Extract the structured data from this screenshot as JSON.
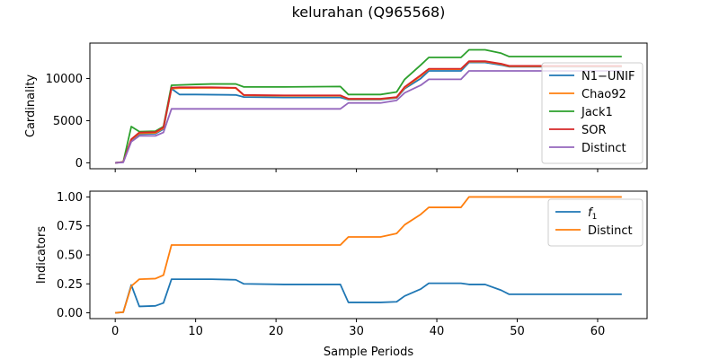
{
  "chart_data": {
    "title": "kelurahan (Q965568)",
    "xlabel": "Sample Periods",
    "panels": [
      {
        "type": "line",
        "ylabel": "Cardinality",
        "xlim": [
          -3.15,
          66.15
        ],
        "ylim": [
          -700,
          14200
        ],
        "xticks": [
          0,
          10,
          20,
          30,
          40,
          50,
          60
        ],
        "yticks": [
          0,
          5000,
          10000
        ],
        "legend_position": "right",
        "series": [
          {
            "name": "N1−UNIF",
            "color": "#1f77b4",
            "points": [
              [
                0,
                0
              ],
              [
                1,
                100
              ],
              [
                2,
                2700
              ],
              [
                3,
                3400
              ],
              [
                5,
                3450
              ],
              [
                6,
                4000
              ],
              [
                7,
                8800
              ],
              [
                8,
                8100
              ],
              [
                10,
                8100
              ],
              [
                15,
                8050
              ],
              [
                16,
                7800
              ],
              [
                21,
                7750
              ],
              [
                28,
                7750
              ],
              [
                29,
                7500
              ],
              [
                33,
                7500
              ],
              [
                35,
                7700
              ],
              [
                36,
                8800
              ],
              [
                38,
                10000
              ],
              [
                39,
                10900
              ],
              [
                43,
                10900
              ],
              [
                44,
                11900
              ],
              [
                46,
                11900
              ],
              [
                48,
                11600
              ],
              [
                49,
                11400
              ],
              [
                63,
                11400
              ]
            ]
          },
          {
            "name": "Chao92",
            "color": "#ff7f0e",
            "points": [
              [
                0,
                0
              ],
              [
                1,
                100
              ],
              [
                2,
                2750
              ],
              [
                3,
                3500
              ],
              [
                5,
                3550
              ],
              [
                6,
                4100
              ],
              [
                7,
                8800
              ],
              [
                8,
                8850
              ],
              [
                12,
                8900
              ],
              [
                15,
                8850
              ],
              [
                16,
                8000
              ],
              [
                21,
                7950
              ],
              [
                28,
                7950
              ],
              [
                29,
                7550
              ],
              [
                33,
                7550
              ],
              [
                35,
                7750
              ],
              [
                36,
                8900
              ],
              [
                38,
                10300
              ],
              [
                39,
                11100
              ],
              [
                43,
                11100
              ],
              [
                44,
                12000
              ],
              [
                46,
                12000
              ],
              [
                48,
                11700
              ],
              [
                49,
                11450
              ],
              [
                63,
                11450
              ]
            ]
          },
          {
            "name": "Jack1",
            "color": "#2ca02c",
            "points": [
              [
                0,
                0
              ],
              [
                1,
                100
              ],
              [
                2,
                4300
              ],
              [
                3,
                3700
              ],
              [
                5,
                3750
              ],
              [
                6,
                4300
              ],
              [
                7,
                9200
              ],
              [
                10,
                9300
              ],
              [
                12,
                9350
              ],
              [
                15,
                9350
              ],
              [
                16,
                9000
              ],
              [
                21,
                9000
              ],
              [
                28,
                9050
              ],
              [
                29,
                8100
              ],
              [
                33,
                8100
              ],
              [
                35,
                8400
              ],
              [
                36,
                9900
              ],
              [
                38,
                11600
              ],
              [
                39,
                12500
              ],
              [
                43,
                12500
              ],
              [
                44,
                13400
              ],
              [
                46,
                13400
              ],
              [
                48,
                13000
              ],
              [
                49,
                12600
              ],
              [
                63,
                12600
              ]
            ]
          },
          {
            "name": "SOR",
            "color": "#d62728",
            "points": [
              [
                0,
                0
              ],
              [
                1,
                100
              ],
              [
                2,
                2800
              ],
              [
                3,
                3600
              ],
              [
                5,
                3650
              ],
              [
                6,
                4200
              ],
              [
                7,
                8900
              ],
              [
                8,
                8950
              ],
              [
                12,
                8950
              ],
              [
                15,
                8900
              ],
              [
                16,
                8050
              ],
              [
                21,
                8000
              ],
              [
                28,
                8000
              ],
              [
                29,
                7600
              ],
              [
                33,
                7600
              ],
              [
                35,
                7800
              ],
              [
                36,
                9000
              ],
              [
                38,
                10400
              ],
              [
                39,
                11150
              ],
              [
                43,
                11150
              ],
              [
                44,
                12050
              ],
              [
                46,
                12050
              ],
              [
                48,
                11750
              ],
              [
                49,
                11500
              ],
              [
                63,
                11500
              ]
            ]
          },
          {
            "name": "Distinct",
            "color": "#9467bd",
            "points": [
              [
                0,
                0
              ],
              [
                1,
                50
              ],
              [
                2,
                2500
              ],
              [
                3,
                3200
              ],
              [
                5,
                3200
              ],
              [
                6,
                3600
              ],
              [
                7,
                6400
              ],
              [
                28,
                6400
              ],
              [
                29,
                7100
              ],
              [
                33,
                7100
              ],
              [
                35,
                7400
              ],
              [
                36,
                8300
              ],
              [
                38,
                9200
              ],
              [
                39,
                9900
              ],
              [
                43,
                9900
              ],
              [
                44,
                10900
              ],
              [
                63,
                10900
              ]
            ]
          }
        ]
      },
      {
        "type": "line",
        "ylabel": "Indicators",
        "xlim": [
          -3.15,
          66.15
        ],
        "ylim": [
          -0.05,
          1.05
        ],
        "xticks": [
          0,
          10,
          20,
          30,
          40,
          50,
          60
        ],
        "yticks": [
          0.0,
          0.25,
          0.5,
          0.75,
          1.0
        ],
        "ytick_labels": [
          "0.00",
          "0.25",
          "0.50",
          "0.75",
          "1.00"
        ],
        "legend_position": "top-right",
        "series": [
          {
            "name": "f1",
            "label_main": "f",
            "label_sub": "1",
            "color": "#1f77b4",
            "points": [
              [
                0,
                0
              ],
              [
                1,
                0.005
              ],
              [
                2,
                0.24
              ],
              [
                3,
                0.055
              ],
              [
                5,
                0.06
              ],
              [
                6,
                0.085
              ],
              [
                7,
                0.29
              ],
              [
                12,
                0.29
              ],
              [
                15,
                0.285
              ],
              [
                16,
                0.25
              ],
              [
                21,
                0.245
              ],
              [
                28,
                0.245
              ],
              [
                29,
                0.09
              ],
              [
                33,
                0.09
              ],
              [
                35,
                0.095
              ],
              [
                36,
                0.145
              ],
              [
                38,
                0.205
              ],
              [
                39,
                0.255
              ],
              [
                43,
                0.255
              ],
              [
                44,
                0.245
              ],
              [
                46,
                0.245
              ],
              [
                48,
                0.195
              ],
              [
                49,
                0.16
              ],
              [
                63,
                0.16
              ]
            ]
          },
          {
            "name": "Distinct",
            "color": "#ff7f0e",
            "points": [
              [
                0,
                0
              ],
              [
                1,
                0.005
              ],
              [
                2,
                0.23
              ],
              [
                3,
                0.29
              ],
              [
                5,
                0.295
              ],
              [
                6,
                0.325
              ],
              [
                7,
                0.585
              ],
              [
                28,
                0.585
              ],
              [
                29,
                0.655
              ],
              [
                33,
                0.655
              ],
              [
                35,
                0.685
              ],
              [
                36,
                0.76
              ],
              [
                38,
                0.85
              ],
              [
                39,
                0.91
              ],
              [
                43,
                0.91
              ],
              [
                44,
                1.0
              ],
              [
                63,
                1.0
              ]
            ]
          }
        ]
      }
    ]
  }
}
